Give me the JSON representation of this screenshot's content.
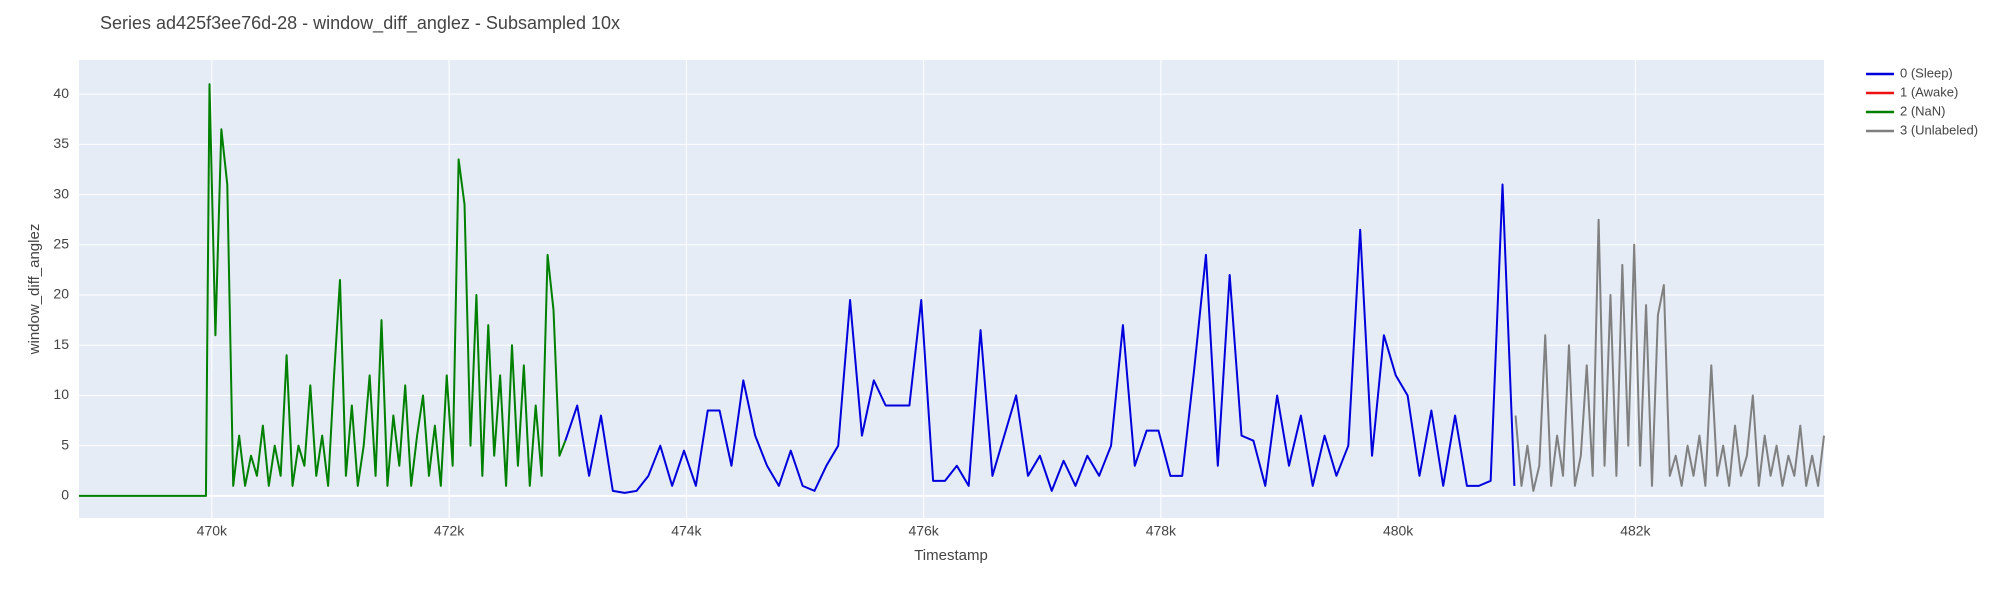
{
  "chart_data": {
    "type": "line",
    "title": "Series ad425f3ee76d-28 - window_diff_anglez - Subsampled 10x",
    "x_label": "Timestamp",
    "y_label": "window_diff_anglez",
    "xlim": [
      468880,
      483590
    ],
    "ylim": [
      -2.2,
      43.4
    ],
    "xticks": [
      {
        "value": 470000,
        "label": "470k"
      },
      {
        "value": 472000,
        "label": "472k"
      },
      {
        "value": 474000,
        "label": "474k"
      },
      {
        "value": 476000,
        "label": "476k"
      },
      {
        "value": 478000,
        "label": "478k"
      },
      {
        "value": 480000,
        "label": "480k"
      },
      {
        "value": 482000,
        "label": "482k"
      }
    ],
    "yticks": [
      0,
      5,
      10,
      15,
      20,
      25,
      30,
      35,
      40
    ],
    "grid": true,
    "legend": "right",
    "series": [
      {
        "name": "0 (Sleep)",
        "color": "#0000dd",
        "x": [
          472980,
          473080,
          473180,
          473280,
          473380,
          473480,
          473580,
          473680,
          473780,
          473880,
          473980,
          474080,
          474180,
          474280,
          474380,
          474480,
          474580,
          474680,
          474780,
          474880,
          474980,
          475080,
          475180,
          475280,
          475380,
          475480,
          475580,
          475680,
          475780,
          475880,
          475980,
          476080,
          476180,
          476280,
          476380,
          476480,
          476580,
          476680,
          476780,
          476880,
          476980,
          477080,
          477180,
          477280,
          477380,
          477480,
          477580,
          477680,
          477780,
          477880,
          477980,
          478080,
          478180,
          478280,
          478380,
          478480,
          478580,
          478680,
          478780,
          478880,
          478980,
          479080,
          479180,
          479280,
          479380,
          479480,
          479580,
          479680,
          479780,
          479880,
          479980,
          480080,
          480180,
          480280,
          480380,
          480480,
          480580,
          480680,
          480780,
          480880,
          480980
        ],
        "values": [
          5.5,
          9,
          2,
          8,
          0.5,
          0.3,
          0.5,
          2,
          5,
          1,
          4.5,
          1,
          8.5,
          8.5,
          3,
          11.5,
          6,
          3,
          1,
          4.5,
          1,
          0.5,
          3,
          5,
          19.5,
          6,
          11.5,
          9,
          9,
          9,
          19.5,
          1.5,
          1.5,
          3,
          1,
          16.5,
          2,
          6,
          10,
          2,
          4,
          0.5,
          3.5,
          1,
          4,
          2,
          5,
          17,
          3,
          6.5,
          6.5,
          2,
          2,
          12.5,
          24,
          3,
          22,
          6,
          5.5,
          1,
          10,
          3,
          8,
          1,
          6,
          2,
          5,
          26.5,
          4,
          16,
          12,
          10,
          2,
          8.5,
          1,
          8,
          1,
          1,
          1.5,
          31,
          1
        ]
      },
      {
        "name": "1 (Awake)",
        "color": "#ee1111",
        "x": [],
        "values": []
      },
      {
        "name": "2 (NaN)",
        "color": "#008000",
        "x": [
          468880,
          469950,
          469980,
          470030,
          470080,
          470130,
          470180,
          470230,
          470280,
          470330,
          470380,
          470430,
          470480,
          470530,
          470580,
          470630,
          470680,
          470730,
          470780,
          470830,
          470880,
          470930,
          470980,
          471030,
          471080,
          471130,
          471180,
          471230,
          471280,
          471330,
          471380,
          471430,
          471480,
          471530,
          471580,
          471630,
          471680,
          471730,
          471780,
          471830,
          471880,
          471930,
          471980,
          472030,
          472080,
          472130,
          472180,
          472230,
          472280,
          472330,
          472380,
          472430,
          472480,
          472530,
          472580,
          472630,
          472680,
          472730,
          472780,
          472830,
          472880,
          472930,
          472980
        ],
        "values": [
          0,
          0,
          41,
          16,
          36.5,
          31,
          1,
          6,
          1,
          4,
          2,
          7,
          1,
          5,
          2,
          14,
          1,
          5,
          3,
          11,
          2,
          6,
          1,
          12,
          21.5,
          2,
          9,
          1,
          5,
          12,
          2,
          17.5,
          1,
          8,
          3,
          11,
          1,
          6,
          10,
          2,
          7,
          1,
          12,
          3,
          33.5,
          29,
          5,
          20,
          2,
          17,
          4,
          12,
          1,
          15,
          3,
          13,
          1,
          9,
          2,
          24,
          18.5,
          4,
          5.5
        ]
      },
      {
        "name": "3 (Unlabeled)",
        "color": "#808080",
        "x": [
          480990,
          481040,
          481090,
          481140,
          481190,
          481240,
          481290,
          481340,
          481390,
          481440,
          481490,
          481540,
          481590,
          481640,
          481690,
          481740,
          481790,
          481840,
          481890,
          481940,
          481990,
          482040,
          482090,
          482140,
          482190,
          482240,
          482290,
          482340,
          482390,
          482440,
          482490,
          482540,
          482590,
          482640,
          482690,
          482740,
          482790,
          482840,
          482890,
          482940,
          482990,
          483040,
          483090,
          483140,
          483190,
          483240,
          483290,
          483340,
          483390,
          483440,
          483490,
          483540,
          483590
        ],
        "values": [
          8,
          1,
          5,
          0.5,
          3,
          16,
          1,
          6,
          2,
          15,
          1,
          4,
          13,
          2,
          27.5,
          3,
          20,
          2,
          23,
          5,
          25,
          3,
          19,
          1,
          18,
          21,
          2,
          4,
          1,
          5,
          2,
          6,
          1,
          13,
          2,
          5,
          1,
          7,
          2,
          4,
          10,
          1,
          6,
          2,
          5,
          1,
          4,
          2,
          7,
          1,
          4,
          1,
          6
        ]
      }
    ]
  }
}
